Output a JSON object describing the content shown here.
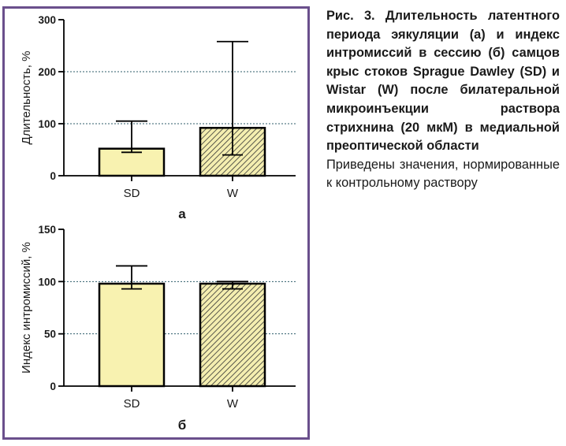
{
  "colors": {
    "frame": "#6a4f8c",
    "bar_fill": "#f8f2b0",
    "bar_stroke": "#000000",
    "hatch_bg": "#f4eeb0",
    "hatch_line": "#333333",
    "grid": "#2f5d6b"
  },
  "caption": {
    "bold_text": "Рис. 3. Длительность латентного периода эякуляции (а) и индекс интромиссий в сессию (б) самцов крыс стоков Sprague Dawley (SD) и Wistar (W) после билатеральной микроинъекции раствора стрихнина (20 мкМ) в медиальной преоптической области",
    "normal_text": "Приведены значения, нормированные к контрольному раствору"
  },
  "chart_data": [
    {
      "type": "bar",
      "panel_label": "а",
      "ylabel": "Длительность, %",
      "categories": [
        "SD",
        "W"
      ],
      "values": [
        52,
        92
      ],
      "error_high": [
        105,
        258
      ],
      "error_low": [
        45,
        40
      ],
      "ylim": [
        0,
        300
      ],
      "yticks": [
        0,
        100,
        200,
        300
      ],
      "patterns": [
        "solid",
        "hatched"
      ],
      "grid": "dotted horizontal"
    },
    {
      "type": "bar",
      "panel_label": "б",
      "ylabel": "Индекс интромиссий, %",
      "categories": [
        "SD",
        "W"
      ],
      "values": [
        98,
        98
      ],
      "error_high": [
        115,
        100
      ],
      "error_low": [
        93,
        93
      ],
      "ylim": [
        0,
        150
      ],
      "yticks": [
        0,
        50,
        100,
        150
      ],
      "patterns": [
        "solid",
        "hatched"
      ],
      "grid": "dotted horizontal"
    }
  ]
}
